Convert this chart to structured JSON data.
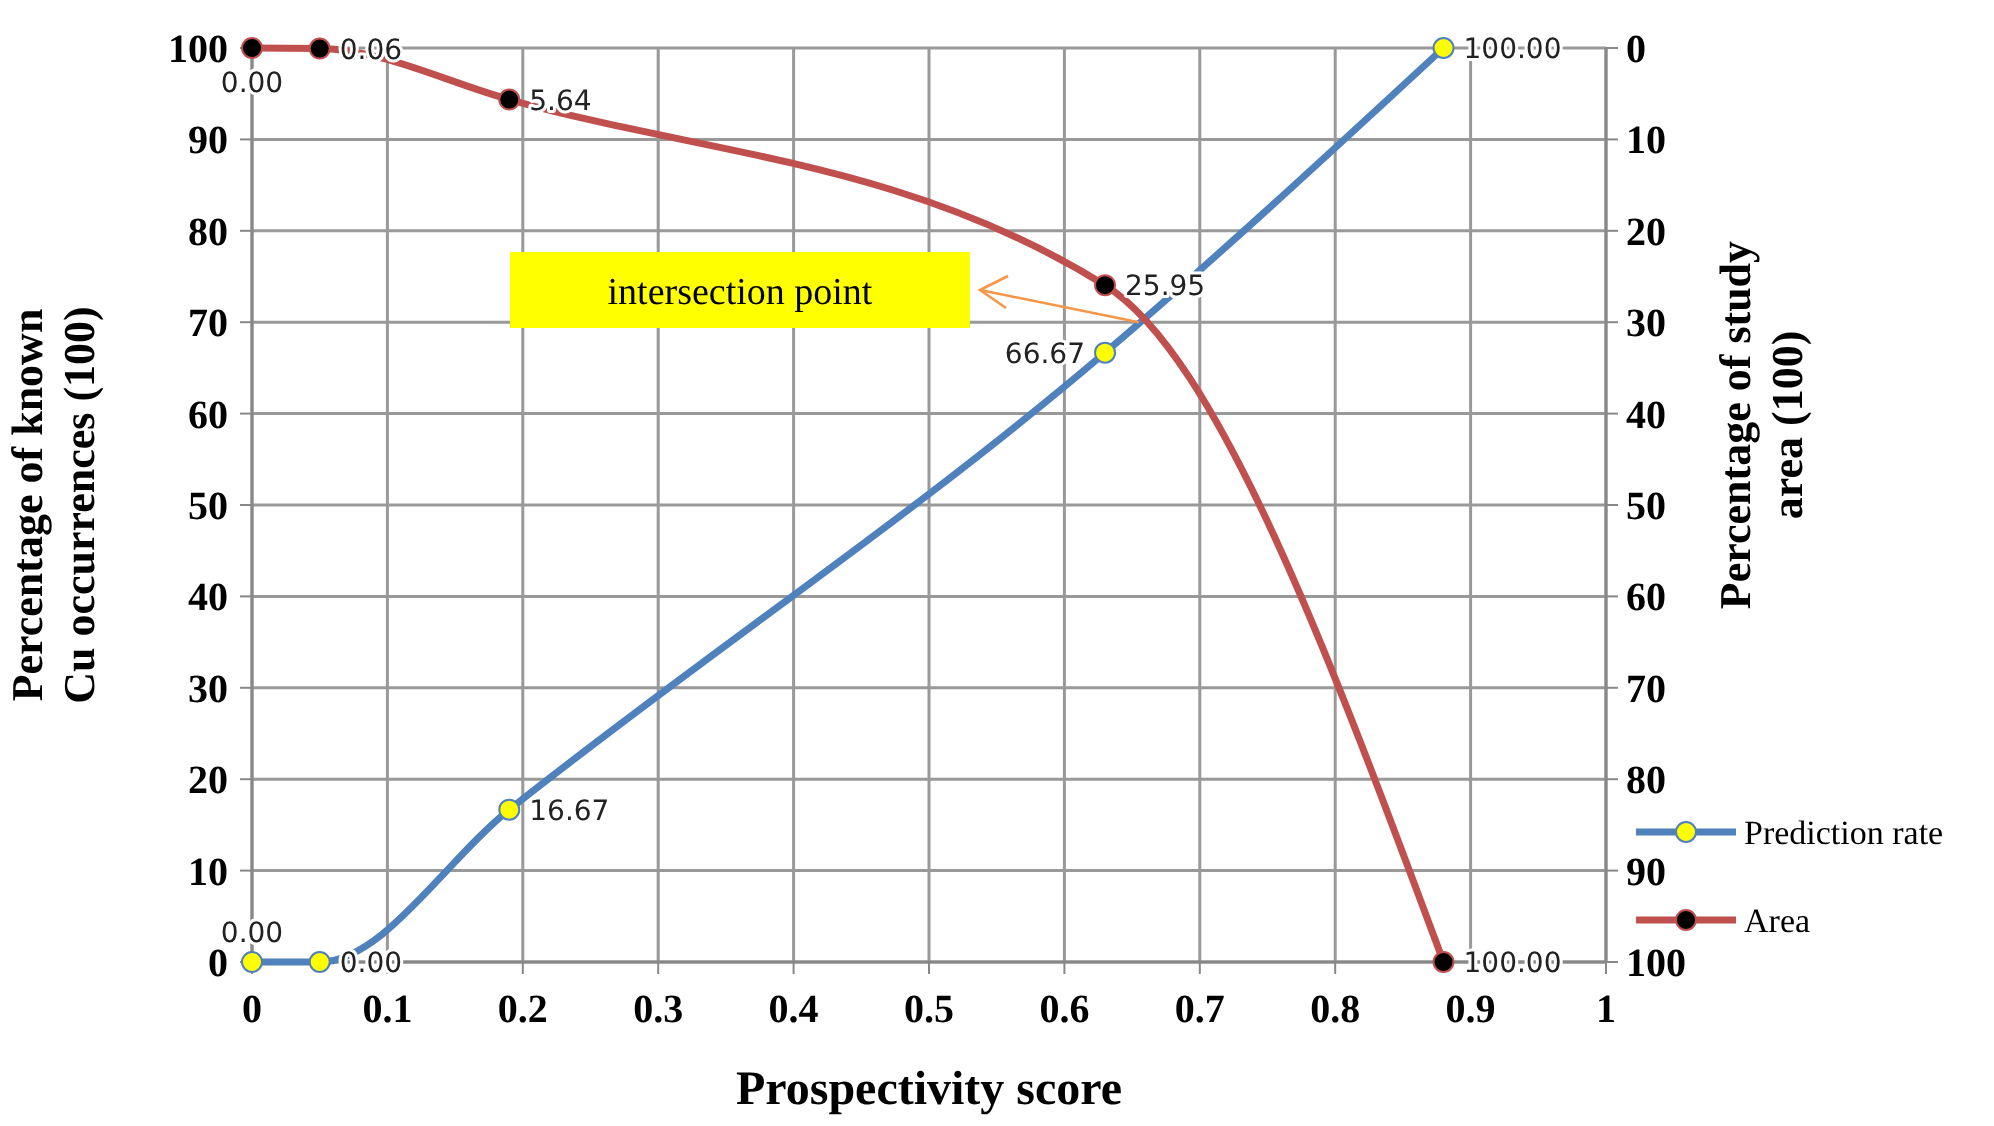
{
  "chart_data": {
    "type": "line",
    "xlabel": "Prospectivity score",
    "ylabel": "Percentage of known\nCu occurrences (100)",
    "y2label": "Percentage of  study\narea (100)",
    "xlim": [
      0,
      1
    ],
    "xticks": [
      0,
      0.1,
      0.2,
      0.3,
      0.4,
      0.5,
      0.6,
      0.7,
      0.8,
      0.9,
      1
    ],
    "ylim": [
      0,
      100
    ],
    "yticks": [
      0,
      10,
      20,
      30,
      40,
      50,
      60,
      70,
      80,
      90,
      100
    ],
    "y2lim": [
      100,
      0
    ],
    "y2ticks": [
      0,
      10,
      20,
      30,
      40,
      50,
      60,
      70,
      80,
      90,
      100
    ],
    "grid": true,
    "legend": "right",
    "marker": "circle",
    "line_style": "solid",
    "series": [
      {
        "name": "Prediction rate",
        "color": "#4f81bd",
        "colors": [
          "#ffff00",
          "#ffff00",
          "#ffff00",
          "#ffff00",
          "#ffff00"
        ],
        "x": [
          0.0,
          0.05,
          0.19,
          0.63,
          0.88
        ],
        "values": [
          0,
          0,
          16.67,
          66.67,
          100
        ],
        "value_labels": [
          "0.00",
          "0.00",
          "16.67",
          "66.67",
          "100.00"
        ]
      },
      {
        "name": "Area",
        "color": "#c0504d",
        "axis": "y2",
        "colors": [
          "#000000",
          "#000000",
          "#000000",
          "#000000",
          "#000000"
        ],
        "x": [
          0.0,
          0.05,
          0.19,
          0.63,
          0.88
        ],
        "values": [
          0,
          0.06,
          5.64,
          25.95,
          100
        ],
        "value_labels": [
          "0.00",
          "0.06",
          "5.64",
          "25.95",
          "100.00"
        ]
      }
    ],
    "annotations": [
      "intersection point"
    ]
  }
}
